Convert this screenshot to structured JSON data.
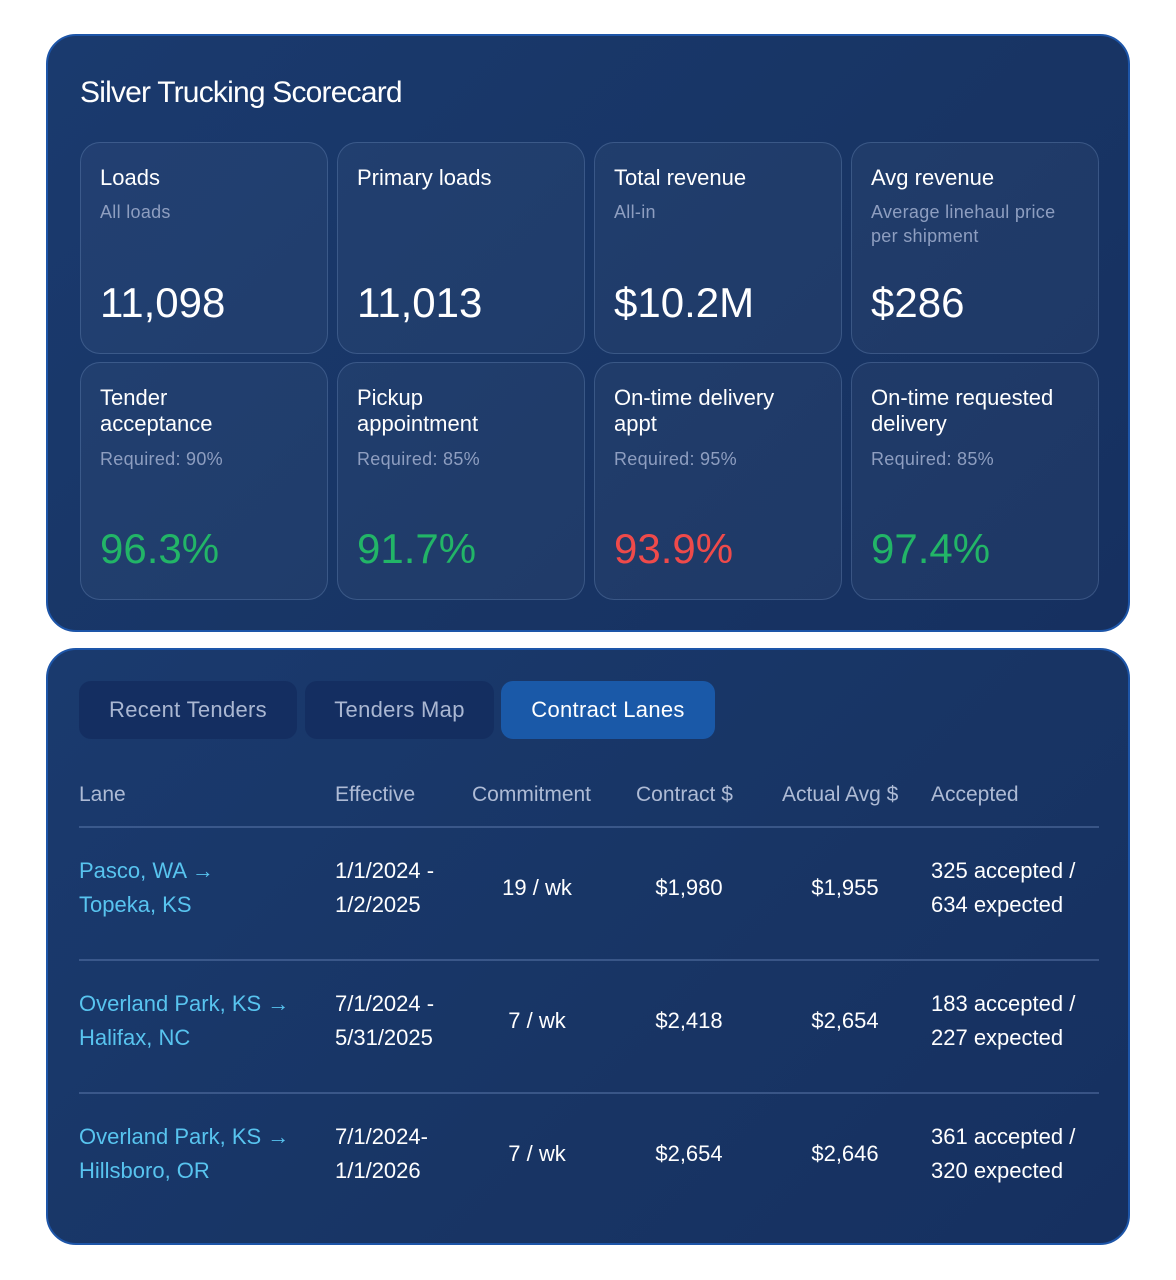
{
  "scorecard": {
    "title": "Silver Trucking Scorecard",
    "metrics": [
      {
        "label": "Loads",
        "sub": "All loads",
        "value": "11,098"
      },
      {
        "label": "Primary loads",
        "sub": "",
        "value": "11,013"
      },
      {
        "label": "Total revenue",
        "sub": "All-in",
        "value": "$10.2M"
      },
      {
        "label": "Avg revenue",
        "sub": "Average linehaul price per shipment",
        "value": "$286"
      }
    ],
    "kpis": [
      {
        "label": "Tender acceptance",
        "sub": "Required: 90%",
        "value": "96.3%",
        "color": "#22b567"
      },
      {
        "label": "Pickup appointment",
        "sub": "Required: 85%",
        "value": "91.7%",
        "color": "#22b567"
      },
      {
        "label": "On-time delivery appt",
        "sub": "Required: 95%",
        "value": "93.9%",
        "color": "#ef4a4a"
      },
      {
        "label": "On-time requested delivery",
        "sub": "Required: 85%",
        "value": "97.4%",
        "color": "#22b567"
      }
    ]
  },
  "tabs": [
    {
      "label": "Recent Tenders",
      "active": false
    },
    {
      "label": "Tenders Map",
      "active": false
    },
    {
      "label": "Contract Lanes",
      "active": true
    }
  ],
  "table": {
    "headers": [
      "Lane",
      "Effective",
      "Commitment",
      "Contract $",
      "Actual Avg $",
      "Accepted"
    ],
    "rows": [
      {
        "lane1": "Pasco, WA →",
        "lane2": "Topeka, KS",
        "eff1": "1/1/2024 -",
        "eff2": "1/2/2025",
        "commitment": "19 / wk",
        "contract": "$1,980",
        "actual": "$1,955",
        "acc1": "325 accepted /",
        "acc2": "634 expected"
      },
      {
        "lane1": "Overland Park, KS →",
        "lane2": "Halifax, NC",
        "eff1": "7/1/2024 -",
        "eff2": "5/31/2025",
        "commitment": "7 / wk",
        "contract": "$2,418",
        "actual": "$2,654",
        "acc1": "183 accepted /",
        "acc2": "227 expected"
      },
      {
        "lane1": "Overland Park, KS →",
        "lane2": "Hillsboro, OR",
        "eff1": "7/1/2024-",
        "eff2": "1/1/2026",
        "commitment": "7 / wk",
        "contract": "$2,654",
        "actual": "$2,646",
        "acc1": "361 accepted /",
        "acc2": "320 expected"
      }
    ]
  }
}
